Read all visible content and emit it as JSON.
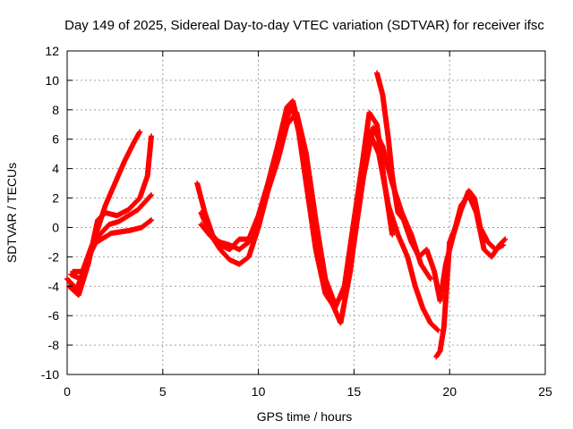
{
  "chart_data": {
    "type": "scatter",
    "title": "Day 149 of 2025, Sidereal Day-to-day VTEC variation (SDTVAR) for receiver ifsc",
    "xlabel": "GPS time / hours",
    "ylabel": "SDTVAR / TECUs",
    "xlim": [
      0,
      25
    ],
    "ylim": [
      -10,
      12
    ],
    "xticks": [
      "0",
      "5",
      "10",
      "15",
      "20",
      "25"
    ],
    "yticks": [
      "-10",
      "-8",
      "-6",
      "-4",
      "-2",
      "0",
      "2",
      "4",
      "6",
      "8",
      "10",
      "12"
    ],
    "grid": true,
    "marker": "+",
    "color": "#ff0000",
    "series": [
      {
        "name": "trace-1",
        "x": [
          0.0,
          0.5,
          1.0,
          1.5,
          2.0,
          2.5,
          3.0,
          3.5,
          3.8
        ],
        "y": [
          -3.5,
          -4.2,
          -2.5,
          -0.5,
          1.5,
          3.0,
          4.5,
          5.8,
          6.5
        ]
      },
      {
        "name": "trace-2",
        "x": [
          0.1,
          0.6,
          1.1,
          1.6,
          2.0,
          2.6,
          3.2,
          3.8,
          4.2,
          4.4
        ],
        "y": [
          -4.0,
          -4.6,
          -2.5,
          0.5,
          1.0,
          0.8,
          1.2,
          2.0,
          3.5,
          6.2
        ]
      },
      {
        "name": "trace-3",
        "x": [
          0.2,
          0.7,
          1.2,
          1.7,
          2.2,
          2.7,
          3.2,
          3.7,
          4.4
        ],
        "y": [
          -3.2,
          -3.5,
          -1.8,
          -0.5,
          0.2,
          0.4,
          0.8,
          1.2,
          2.2
        ]
      },
      {
        "name": "trace-4",
        "x": [
          0.3,
          0.8,
          1.3,
          1.8,
          2.3,
          2.8,
          3.3,
          3.9,
          4.4
        ],
        "y": [
          -3.0,
          -3.0,
          -1.2,
          -0.8,
          -0.4,
          -0.3,
          -0.2,
          0.0,
          0.5
        ]
      },
      {
        "name": "trace-5",
        "x": [
          6.8,
          7.2,
          7.6,
          8.0,
          8.5,
          9.0,
          9.5,
          10.0,
          10.5,
          11.0,
          11.5,
          11.8,
          12.0,
          12.5,
          13.0,
          13.5,
          14.0,
          14.5,
          15.0,
          15.4,
          15.8,
          16.2,
          16.6,
          17.0
        ],
        "y": [
          3.0,
          1.0,
          -0.5,
          -1.2,
          -1.5,
          -0.8,
          -0.8,
          0.8,
          3.0,
          5.5,
          8.2,
          8.6,
          7.5,
          3.0,
          -1.5,
          -4.5,
          -5.5,
          -4.0,
          0.5,
          4.0,
          7.8,
          7.0,
          3.0,
          -0.5
        ]
      },
      {
        "name": "trace-6",
        "x": [
          7.0,
          7.5,
          8.0,
          8.5,
          9.0,
          9.5,
          10.0,
          10.5,
          11.0,
          11.5,
          11.8,
          12.2,
          12.8,
          13.3,
          13.8,
          14.3,
          14.8,
          15.3,
          15.8,
          16.3,
          16.8,
          17.3,
          17.8,
          18.2,
          18.6,
          19.0,
          19.4
        ],
        "y": [
          1.0,
          -0.5,
          -1.5,
          -2.2,
          -2.5,
          -2.0,
          0.0,
          2.5,
          5.0,
          7.5,
          8.2,
          6.0,
          1.5,
          -3.0,
          -5.0,
          -6.5,
          -3.0,
          2.0,
          6.5,
          5.0,
          1.5,
          -0.5,
          -2.0,
          -4.0,
          -5.5,
          -6.5,
          -7.0
        ]
      },
      {
        "name": "trace-7",
        "x": [
          7.0,
          7.5,
          8.0,
          8.5,
          9.0,
          9.5,
          10.0,
          10.5,
          11.0,
          11.5,
          12.0,
          12.5,
          13.0,
          13.5,
          14.0,
          14.5,
          15.0,
          15.5,
          16.0,
          16.5,
          17.0,
          17.5,
          18.0,
          18.5,
          19.0
        ],
        "y": [
          0.2,
          -0.6,
          -1.0,
          -1.2,
          -1.5,
          -1.0,
          0.5,
          2.5,
          4.5,
          7.0,
          7.8,
          5.0,
          0.5,
          -3.5,
          -5.2,
          -4.5,
          -1.0,
          3.5,
          6.8,
          5.5,
          3.0,
          1.0,
          -0.5,
          -2.5,
          -3.5
        ]
      },
      {
        "name": "trace-8",
        "x": [
          16.2,
          16.5,
          16.8,
          17.0,
          17.3,
          17.6,
          18.0,
          18.4,
          18.8,
          19.2,
          19.5,
          19.8,
          20.2,
          20.6,
          21.0,
          21.3,
          21.6,
          22.0,
          22.4,
          22.8
        ],
        "y": [
          10.5,
          9.0,
          6.0,
          3.5,
          1.0,
          0.5,
          -1.0,
          -2.0,
          -1.5,
          -3.0,
          -5.0,
          -2.5,
          -0.5,
          1.2,
          2.5,
          2.0,
          0.0,
          -1.0,
          -1.5,
          -1.2
        ]
      },
      {
        "name": "trace-9",
        "x": [
          19.3,
          19.5,
          19.7,
          20.0,
          20.3,
          20.6,
          21.0,
          21.4,
          21.8,
          22.2,
          22.6,
          22.9
        ],
        "y": [
          -8.8,
          -8.4,
          -6.8,
          -1.0,
          0.0,
          1.5,
          2.2,
          1.0,
          -1.5,
          -2.0,
          -1.2,
          -0.8
        ]
      }
    ]
  }
}
